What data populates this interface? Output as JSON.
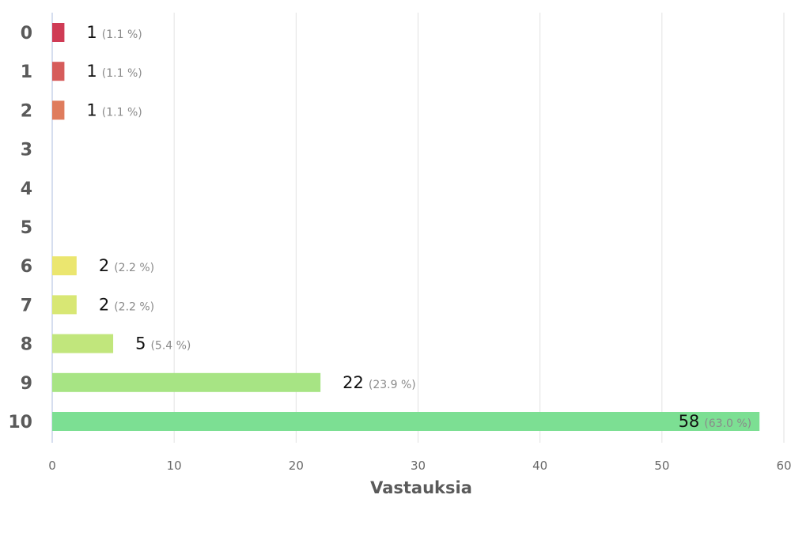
{
  "chart_data": {
    "type": "bar",
    "orientation": "horizontal",
    "categories": [
      "0",
      "1",
      "2",
      "3",
      "4",
      "5",
      "6",
      "7",
      "8",
      "9",
      "10"
    ],
    "values": [
      1,
      1,
      1,
      0,
      0,
      0,
      2,
      2,
      5,
      22,
      58
    ],
    "percent_labels": [
      "(1.1 %)",
      "(1.1 %)",
      "(1.1 %)",
      "",
      "",
      "",
      "(2.2 %)",
      "(2.2 %)",
      "(5.4 %)",
      "(23.9 %)",
      "(63.0 %)"
    ],
    "colors": [
      "#cf3b55",
      "#d65c5b",
      "#df7c5d",
      "#e69a62",
      "#ebb867",
      "#eed36c",
      "#ebe66f",
      "#d8e774",
      "#c1e67c",
      "#a7e484",
      "#7cdf93"
    ],
    "title": "",
    "xlabel": "Vastauksia",
    "ylabel": "",
    "xlim": [
      0,
      60
    ],
    "x_ticks": [
      0,
      10,
      20,
      30,
      40,
      50,
      60
    ],
    "grid": "vertical"
  }
}
